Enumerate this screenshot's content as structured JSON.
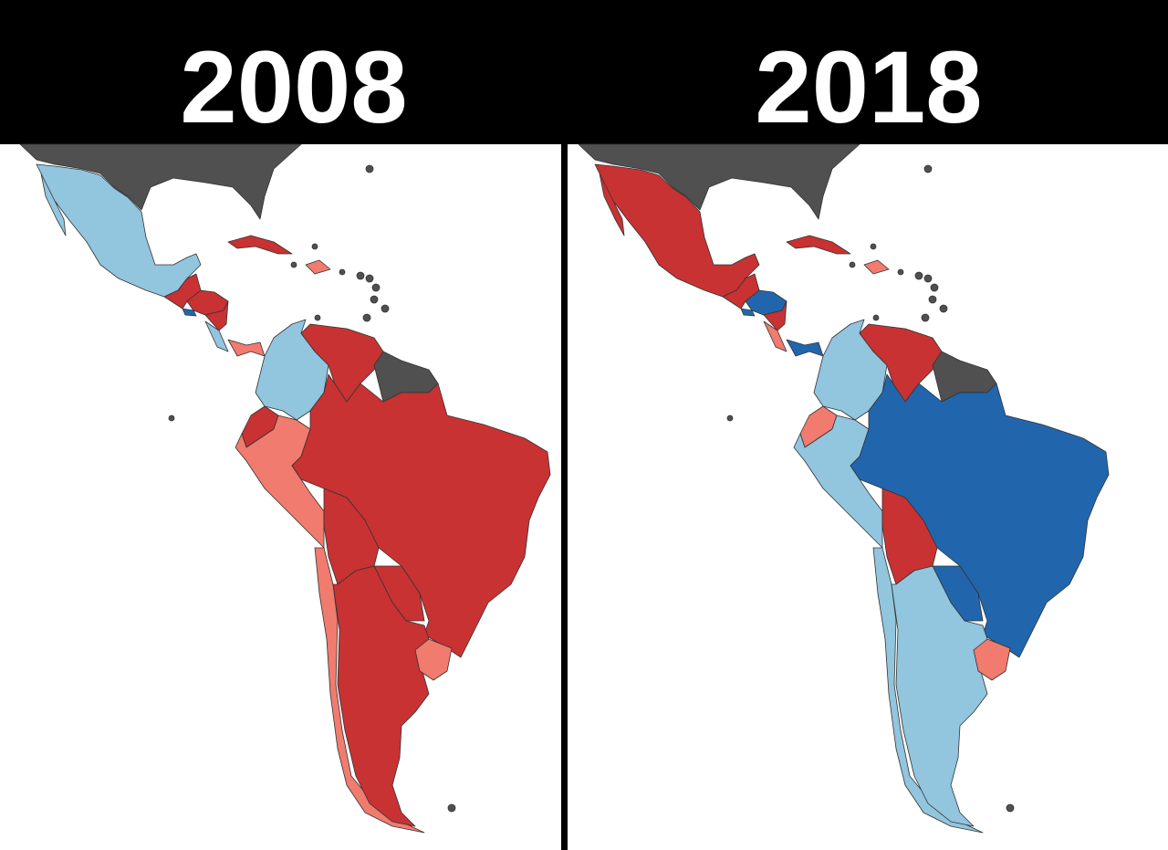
{
  "panels": [
    {
      "title": "2008"
    },
    {
      "title": "2018"
    }
  ]
}
